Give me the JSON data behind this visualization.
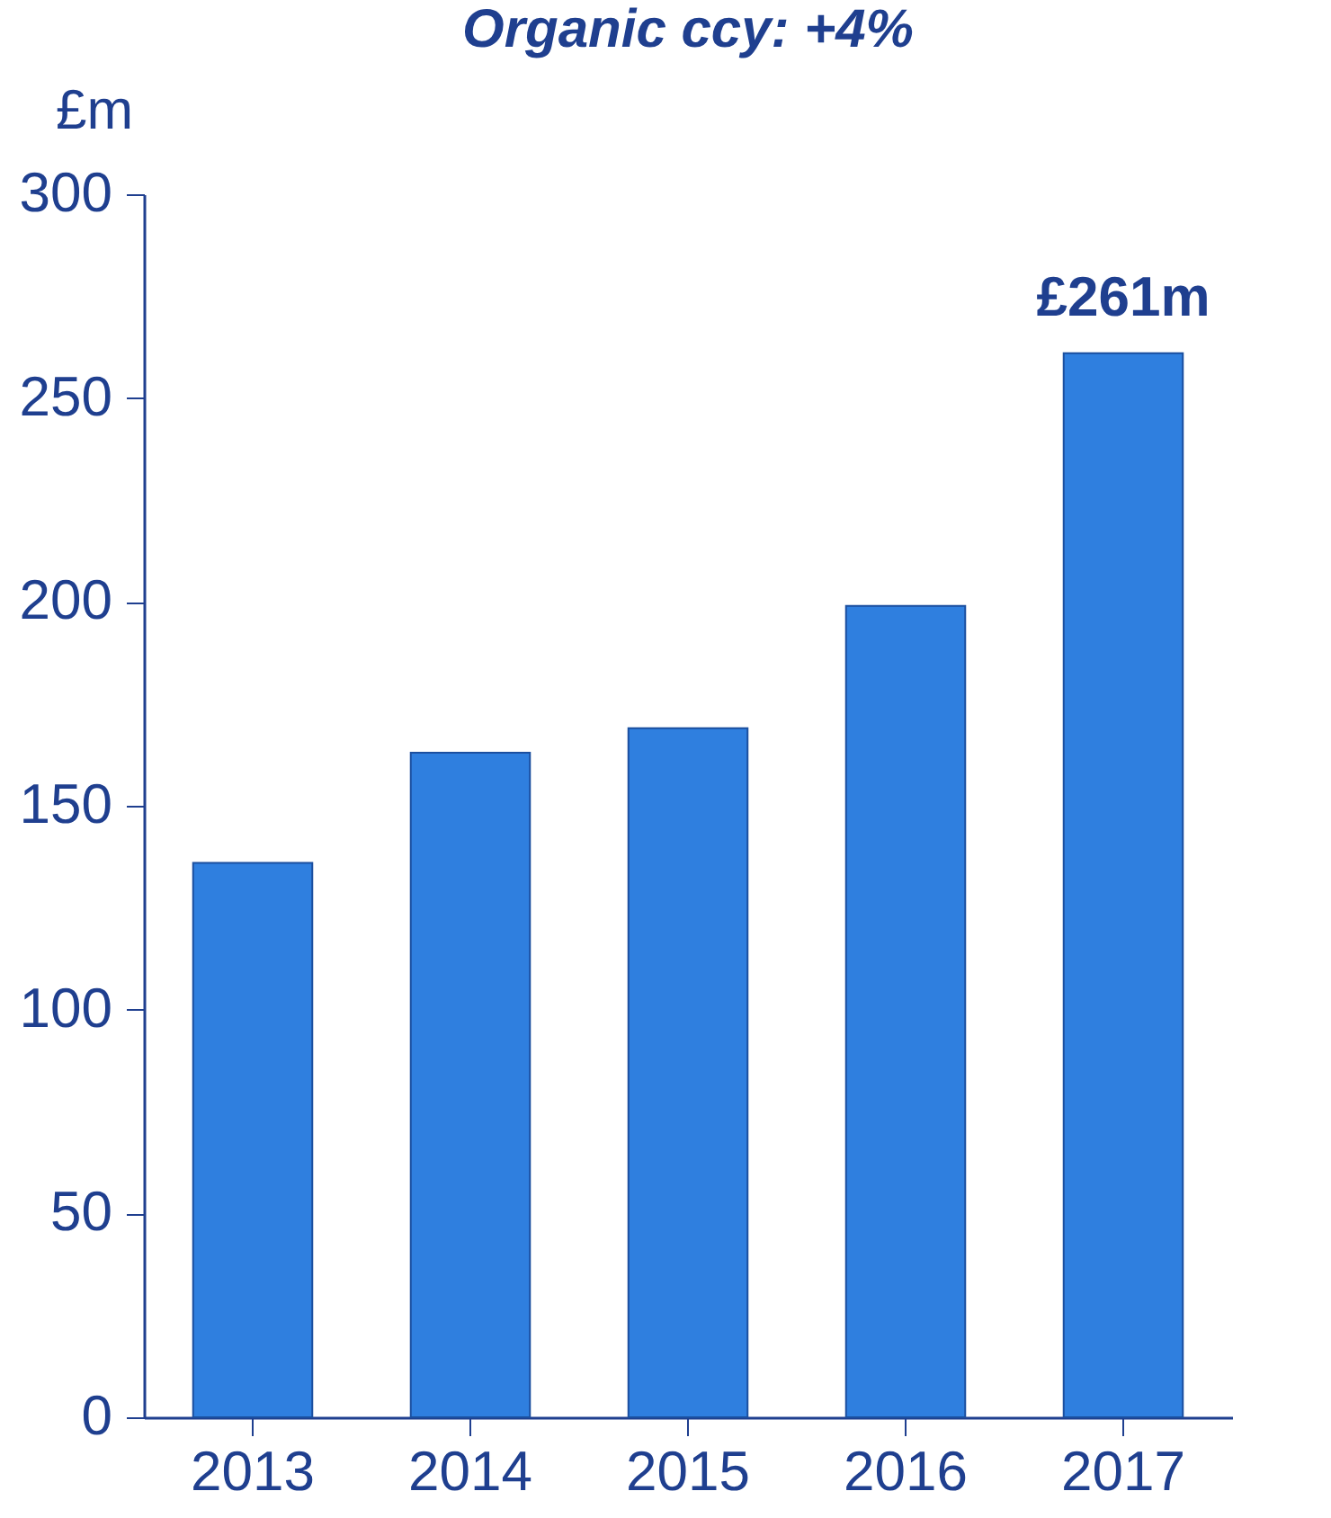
{
  "chart_data": {
    "type": "bar",
    "title": "Organic ccy:  +4%",
    "ylabel": "£m",
    "categories": [
      "2013",
      "2014",
      "2015",
      "2016",
      "2017"
    ],
    "values": [
      136,
      163,
      169,
      199,
      261
    ],
    "color": "#2f7fdf",
    "ylim": [
      0,
      300
    ],
    "yticks": [
      0,
      50,
      100,
      150,
      200,
      250,
      300
    ],
    "grid": false,
    "annotations": [
      {
        "text": "£261m",
        "x": "2017",
        "y": 261
      }
    ]
  }
}
